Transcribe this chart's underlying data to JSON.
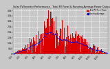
{
  "title": "Solar PV/Inverter Performance   Total PV Panel & Running Average Power Output",
  "bar_color": "#dd0000",
  "line_color": "#0000cc",
  "dot_color": "#0000ee",
  "grid_color": "#ffffff",
  "bg_color": "#c8c8c8",
  "plot_bg_color": "#c8c8c8",
  "num_bars": 365,
  "y_max": 4200,
  "y_ticks": [
    0,
    500,
    1000,
    1500,
    2000,
    2500,
    3000,
    3500,
    4000
  ],
  "y_tick_labels": [
    "0",
    "500",
    "1.0k",
    "1.5k",
    "2.0k",
    "2.5k",
    "3.0k",
    "3.5k",
    "4.0k"
  ],
  "x_label_count": 12,
  "legend_pv_label": "Total PV Panel Power",
  "legend_avg_label": "Running Average"
}
